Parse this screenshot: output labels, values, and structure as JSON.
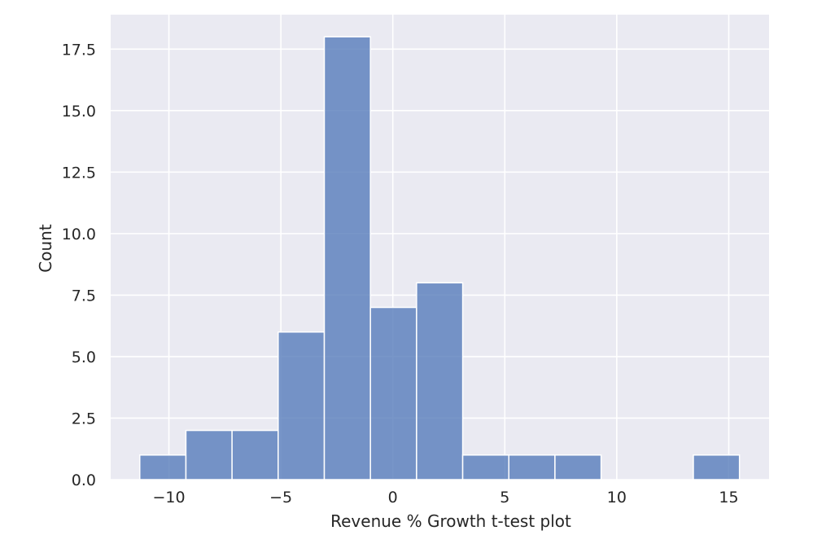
{
  "chart_data": {
    "type": "bar",
    "title": "",
    "xlabel": "Revenue % Growth t-test plot",
    "ylabel": "Count",
    "xlim": [
      -12.6,
      16.8
    ],
    "ylim": [
      0,
      18.9
    ],
    "x_ticks": [
      -10,
      -5,
      0,
      5,
      10,
      15
    ],
    "x_tick_labels": [
      "−10",
      "−5",
      "0",
      "5",
      "10",
      "15"
    ],
    "y_ticks": [
      0,
      2.5,
      5,
      7.5,
      10,
      12.5,
      15,
      17.5
    ],
    "y_tick_labels": [
      "0.0",
      "2.5",
      "5.0",
      "7.5",
      "10.0",
      "12.5",
      "15.0",
      "17.5"
    ],
    "bins": [
      {
        "start": -11.3,
        "end": -9.24,
        "count": 1
      },
      {
        "start": -9.24,
        "end": -7.18,
        "count": 2
      },
      {
        "start": -7.18,
        "end": -5.12,
        "count": 2
      },
      {
        "start": -5.12,
        "end": -3.06,
        "count": 6
      },
      {
        "start": -3.06,
        "end": -1.0,
        "count": 18
      },
      {
        "start": -1.0,
        "end": 1.06,
        "count": 7
      },
      {
        "start": 1.06,
        "end": 3.12,
        "count": 8
      },
      {
        "start": 3.12,
        "end": 5.18,
        "count": 1
      },
      {
        "start": 5.18,
        "end": 7.24,
        "count": 1
      },
      {
        "start": 7.24,
        "end": 9.3,
        "count": 1
      },
      {
        "start": 9.3,
        "end": 11.36,
        "count": 0
      },
      {
        "start": 11.36,
        "end": 13.42,
        "count": 0
      },
      {
        "start": 13.42,
        "end": 15.48,
        "count": 1
      }
    ],
    "grid": true,
    "colors": {
      "background": "#eaeaf2",
      "bar": "#5a7fbc",
      "bar_opacity": 0.82
    }
  }
}
